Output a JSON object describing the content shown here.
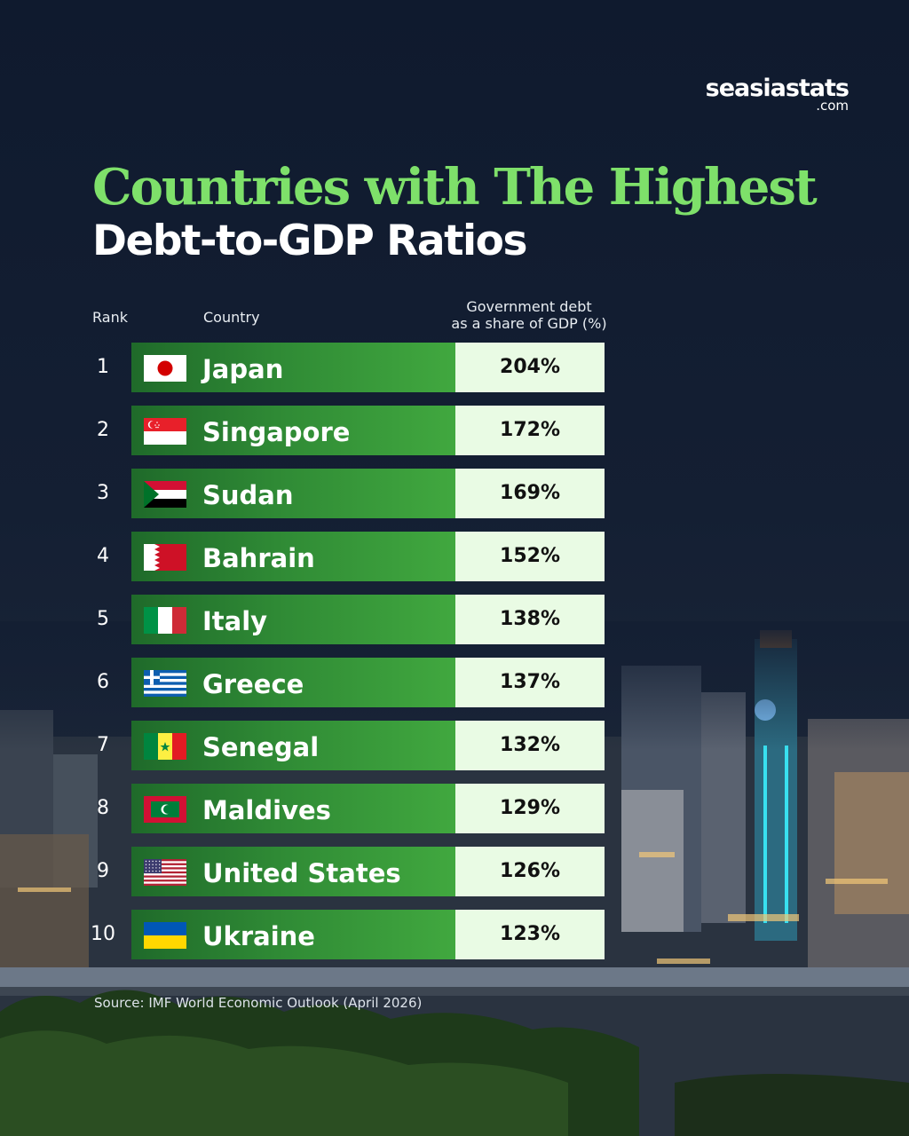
{
  "brand": {
    "name": "seasiastats",
    "tld": ".com"
  },
  "title": {
    "line1": "Countries with The Highest",
    "line2": "Debt-to-GDP Ratios"
  },
  "headers": {
    "rank": "Rank",
    "country": "Country",
    "value_line1": "Government debt",
    "value_line2": "as a share of GDP (%)"
  },
  "rows": [
    {
      "rank": "1",
      "country": "Japan",
      "value": "204%",
      "flag": "japan-flag"
    },
    {
      "rank": "2",
      "country": "Singapore",
      "value": "172%",
      "flag": "singapore-flag"
    },
    {
      "rank": "3",
      "country": "Sudan",
      "value": "169%",
      "flag": "sudan-flag"
    },
    {
      "rank": "4",
      "country": "Bahrain",
      "value": "152%",
      "flag": "bahrain-flag"
    },
    {
      "rank": "5",
      "country": "Italy",
      "value": "138%",
      "flag": "italy-flag"
    },
    {
      "rank": "6",
      "country": "Greece",
      "value": "137%",
      "flag": "greece-flag"
    },
    {
      "rank": "7",
      "country": "Senegal",
      "value": "132%",
      "flag": "senegal-flag"
    },
    {
      "rank": "8",
      "country": "Maldives",
      "value": "129%",
      "flag": "maldives-flag"
    },
    {
      "rank": "9",
      "country": "United States",
      "value": "126%",
      "flag": "us-flag"
    },
    {
      "rank": "10",
      "country": "Ukraine",
      "value": "123%",
      "flag": "ukraine-flag"
    }
  ],
  "source": "Source: IMF World Economic Outlook (April 2026)",
  "colors": {
    "title_green": "#7ee06a",
    "bar_green": "#2f8a35",
    "value_bg": "#e9fbe4",
    "background": "#0f1a2e"
  },
  "chart_data": {
    "type": "table",
    "title": "Countries with The Highest Debt-to-GDP Ratios",
    "columns": [
      "Rank",
      "Country",
      "Government debt as a share of GDP (%)"
    ],
    "categories": [
      "Japan",
      "Singapore",
      "Sudan",
      "Bahrain",
      "Italy",
      "Greece",
      "Senegal",
      "Maldives",
      "United States",
      "Ukraine"
    ],
    "values": [
      204,
      172,
      169,
      152,
      138,
      137,
      132,
      129,
      126,
      123
    ]
  }
}
